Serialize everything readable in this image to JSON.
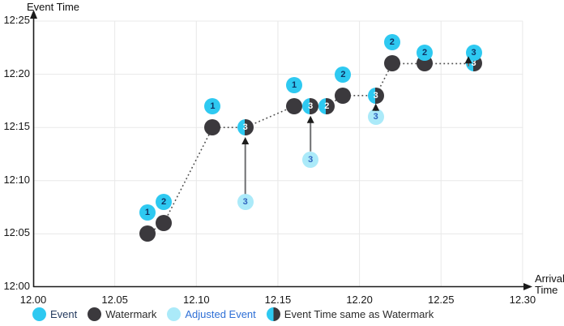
{
  "chart_data": {
    "type": "scatter",
    "title": "",
    "y_axis": {
      "title": "Event Time",
      "tick_labels": [
        "12:00",
        "12:05",
        "12:10",
        "12:15",
        "12:20",
        "12:25"
      ],
      "tick_minutes": [
        0,
        5,
        10,
        15,
        20,
        25
      ],
      "range_minutes": [
        0,
        25
      ]
    },
    "x_axis": {
      "title_lines": [
        "Arrival",
        "Time"
      ],
      "tick_labels": [
        "12.00",
        "12.05",
        "12.10",
        "12.15",
        "12.20",
        "12.25",
        "12.30"
      ],
      "tick_minutes": [
        0,
        5,
        10,
        15,
        20,
        25,
        30
      ],
      "range_minutes": [
        0,
        30
      ]
    },
    "grid": true,
    "legend_position": "bottom",
    "legend": [
      {
        "kind": "event",
        "label": "Event"
      },
      {
        "kind": "watermark",
        "label": "Watermark"
      },
      {
        "kind": "adjusted",
        "label": "Adjusted Event"
      },
      {
        "kind": "same_as_watermark",
        "label": "Event Time same as Watermark"
      }
    ],
    "watermark_path_minutes": [
      [
        7,
        5
      ],
      [
        8,
        6
      ],
      [
        11,
        15
      ],
      [
        13,
        15
      ],
      [
        16,
        17
      ],
      [
        17,
        17
      ],
      [
        18,
        17
      ],
      [
        19,
        18
      ],
      [
        21,
        18
      ],
      [
        22,
        21
      ],
      [
        24,
        21
      ],
      [
        27,
        21
      ]
    ],
    "markers": [
      {
        "kind": "watermark",
        "label": "",
        "arrival_min": 7,
        "event_min": 5,
        "arrival": "12.07",
        "event_time": "12:05"
      },
      {
        "kind": "watermark",
        "label": "",
        "arrival_min": 8,
        "event_min": 6,
        "arrival": "12.08",
        "event_time": "12:06"
      },
      {
        "kind": "watermark",
        "label": "",
        "arrival_min": 11,
        "event_min": 15,
        "arrival": "12.11",
        "event_time": "12:15"
      },
      {
        "kind": "watermark",
        "label": "",
        "arrival_min": 16,
        "event_min": 17,
        "arrival": "12.16",
        "event_time": "12:17"
      },
      {
        "kind": "watermark",
        "label": "",
        "arrival_min": 19,
        "event_min": 18,
        "arrival": "12.19",
        "event_time": "12:18"
      },
      {
        "kind": "watermark",
        "label": "",
        "arrival_min": 22,
        "event_min": 21,
        "arrival": "12.22",
        "event_time": "12:21"
      },
      {
        "kind": "watermark",
        "label": "",
        "arrival_min": 24,
        "event_min": 21,
        "arrival": "12.24",
        "event_time": "12:21"
      },
      {
        "kind": "same_as_watermark",
        "label": "3",
        "arrival_min": 13,
        "event_min": 15,
        "arrival": "12.13",
        "event_time": "12:15"
      },
      {
        "kind": "same_as_watermark",
        "label": "3",
        "arrival_min": 17,
        "event_min": 17,
        "arrival": "12.17",
        "event_time": "12:17"
      },
      {
        "kind": "same_as_watermark",
        "label": "2",
        "arrival_min": 18,
        "event_min": 17,
        "arrival": "12.18",
        "event_time": "12:17"
      },
      {
        "kind": "same_as_watermark",
        "label": "3",
        "arrival_min": 21,
        "event_min": 18,
        "arrival": "12.21",
        "event_time": "12:18"
      },
      {
        "kind": "same_as_watermark",
        "label": "3",
        "arrival_min": 27,
        "event_min": 21,
        "arrival": "12.27",
        "event_time": "12:21"
      },
      {
        "kind": "adjusted",
        "label": "3",
        "arrival_min": 13,
        "event_min": 8,
        "arrival": "12.13",
        "event_time": "12:08"
      },
      {
        "kind": "adjusted",
        "label": "3",
        "arrival_min": 17,
        "event_min": 12,
        "arrival": "12.17",
        "event_time": "12:12"
      },
      {
        "kind": "adjusted",
        "label": "3",
        "arrival_min": 21,
        "event_min": 16,
        "arrival": "12.21",
        "event_time": "12:16"
      },
      {
        "kind": "event",
        "label": "1",
        "arrival_min": 7,
        "event_min": 7,
        "arrival": "12.07",
        "event_time": "12:07"
      },
      {
        "kind": "event",
        "label": "2",
        "arrival_min": 8,
        "event_min": 8,
        "arrival": "12.08",
        "event_time": "12:08"
      },
      {
        "kind": "event",
        "label": "1",
        "arrival_min": 11,
        "event_min": 17,
        "arrival": "12.11",
        "event_time": "12:17"
      },
      {
        "kind": "event",
        "label": "1",
        "arrival_min": 16,
        "event_min": 19,
        "arrival": "12.16",
        "event_time": "12:19"
      },
      {
        "kind": "event",
        "label": "2",
        "arrival_min": 19,
        "event_min": 20,
        "arrival": "12.19",
        "event_time": "12:20"
      },
      {
        "kind": "event",
        "label": "2",
        "arrival_min": 22,
        "event_min": 23,
        "arrival": "12.22",
        "event_time": "12:23"
      },
      {
        "kind": "event",
        "label": "2",
        "arrival_min": 24,
        "event_min": 22,
        "arrival": "12.24",
        "event_time": "12:22"
      },
      {
        "kind": "event",
        "label": "3",
        "arrival_min": 27,
        "event_min": 22,
        "arrival": "12.27",
        "event_time": "12:22"
      }
    ],
    "adjustment_arrows": [
      {
        "x_min": 13,
        "tail_min": 8.75,
        "tip_min": 14.1
      },
      {
        "x_min": 17,
        "tail_min": 12.75,
        "tip_min": 16.1
      },
      {
        "x_min": 21,
        "tail_min": 16.55,
        "tip_min": 17.25
      },
      {
        "x_min": 26.68,
        "tail_min": 20.75,
        "tip_min": 21.7
      }
    ]
  },
  "colors": {
    "event": "#2EC9F1",
    "watermark": "#3B393D",
    "adjusted_event": "#ABEAF9",
    "event_number_text": "#0E3263",
    "adjusted_number_text": "#2E63BE",
    "legend_event_text": "#243A5E",
    "legend_watermark_text": "#2B2B2B",
    "legend_adjusted_text": "#2E6FD6",
    "gridline": "#E8E8E8",
    "axis": "#1A1A1A",
    "dotted_line": "#4F4F4F",
    "arrow_line": "#6E6F71",
    "arrow_head": "#1C1C1C",
    "background": "#FFFFFF"
  }
}
